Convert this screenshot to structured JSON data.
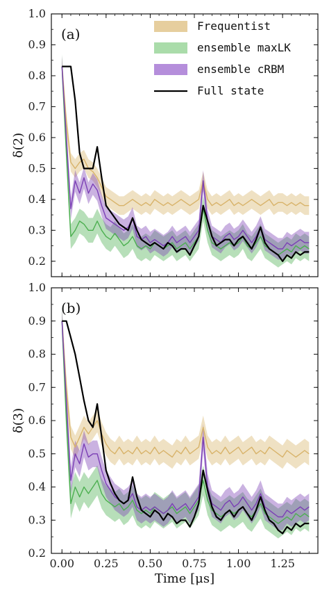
{
  "figure": {
    "xlabel": "Time [μs]"
  },
  "legend": {
    "placement": "top-right of panel (a)",
    "items": [
      {
        "label": "Frequentist",
        "color": "#d8b36a",
        "kind": "band"
      },
      {
        "label": "ensemble maxLK",
        "color": "#7cc97c",
        "kind": "band"
      },
      {
        "label": "ensemble cRBM",
        "color": "#8d52c7",
        "kind": "band"
      },
      {
        "label": "Full state",
        "color": "#000000",
        "kind": "line"
      }
    ]
  },
  "chart_data": [
    {
      "type": "line",
      "panel_label": "(a)",
      "ylabel": "δ(2)",
      "xlabel": "",
      "xlim": [
        -0.06,
        1.45
      ],
      "ylim": [
        0.15,
        1.0
      ],
      "xticks": [
        0.0,
        0.25,
        0.5,
        0.75,
        1.0,
        1.25
      ],
      "yticks": [
        0.2,
        0.3,
        0.4,
        0.5,
        0.6,
        0.7,
        0.8,
        0.9,
        1.0
      ],
      "x": [
        0.0,
        0.025,
        0.05,
        0.075,
        0.1,
        0.125,
        0.15,
        0.175,
        0.2,
        0.225,
        0.25,
        0.275,
        0.3,
        0.325,
        0.35,
        0.375,
        0.4,
        0.425,
        0.45,
        0.475,
        0.5,
        0.525,
        0.55,
        0.575,
        0.6,
        0.625,
        0.65,
        0.675,
        0.7,
        0.725,
        0.75,
        0.775,
        0.8,
        0.825,
        0.85,
        0.875,
        0.9,
        0.925,
        0.95,
        0.975,
        1.0,
        1.025,
        1.05,
        1.075,
        1.1,
        1.125,
        1.15,
        1.175,
        1.2,
        1.225,
        1.25,
        1.275,
        1.3,
        1.325,
        1.35,
        1.375,
        1.4
      ],
      "series": [
        {
          "name": "Frequentist",
          "color": "#d8b36a",
          "mean": [
            0.83,
            0.65,
            0.52,
            0.5,
            0.52,
            0.53,
            0.5,
            0.49,
            0.47,
            0.44,
            0.41,
            0.4,
            0.39,
            0.38,
            0.38,
            0.39,
            0.4,
            0.39,
            0.38,
            0.39,
            0.38,
            0.4,
            0.39,
            0.38,
            0.39,
            0.38,
            0.39,
            0.4,
            0.39,
            0.38,
            0.39,
            0.4,
            0.46,
            0.4,
            0.38,
            0.39,
            0.38,
            0.39,
            0.4,
            0.38,
            0.39,
            0.38,
            0.39,
            0.4,
            0.39,
            0.38,
            0.39,
            0.4,
            0.38,
            0.39,
            0.39,
            0.38,
            0.39,
            0.38,
            0.39,
            0.38,
            0.38
          ],
          "band": 0.03
        },
        {
          "name": "ensemble maxLK",
          "color": "#4caf50",
          "mean": [
            0.83,
            0.55,
            0.28,
            0.3,
            0.33,
            0.32,
            0.3,
            0.3,
            0.33,
            0.3,
            0.28,
            0.27,
            0.29,
            0.27,
            0.25,
            0.26,
            0.28,
            0.25,
            0.24,
            0.25,
            0.24,
            0.26,
            0.25,
            0.24,
            0.25,
            0.26,
            0.24,
            0.25,
            0.26,
            0.24,
            0.26,
            0.28,
            0.37,
            0.3,
            0.26,
            0.25,
            0.24,
            0.25,
            0.26,
            0.25,
            0.26,
            0.28,
            0.25,
            0.24,
            0.26,
            0.28,
            0.25,
            0.24,
            0.23,
            0.22,
            0.23,
            0.24,
            0.23,
            0.25,
            0.24,
            0.25,
            0.24
          ],
          "band": 0.04
        },
        {
          "name": "ensemble cRBM",
          "color": "#7b3fb5",
          "mean": [
            0.83,
            0.6,
            0.37,
            0.46,
            0.42,
            0.47,
            0.42,
            0.45,
            0.43,
            0.38,
            0.34,
            0.33,
            0.32,
            0.31,
            0.3,
            0.31,
            0.34,
            0.28,
            0.27,
            0.28,
            0.26,
            0.27,
            0.26,
            0.25,
            0.26,
            0.28,
            0.26,
            0.27,
            0.28,
            0.26,
            0.28,
            0.3,
            0.46,
            0.33,
            0.28,
            0.27,
            0.26,
            0.28,
            0.29,
            0.27,
            0.28,
            0.3,
            0.28,
            0.26,
            0.28,
            0.31,
            0.27,
            0.26,
            0.25,
            0.24,
            0.24,
            0.26,
            0.25,
            0.26,
            0.27,
            0.26,
            0.26
          ],
          "band": 0.035
        },
        {
          "name": "Full state",
          "color": "#000000",
          "mean": [
            0.83,
            0.83,
            0.83,
            0.72,
            0.55,
            0.5,
            0.5,
            0.5,
            0.57,
            0.47,
            0.38,
            0.36,
            0.34,
            0.32,
            0.31,
            0.3,
            0.34,
            0.3,
            0.27,
            0.26,
            0.25,
            0.26,
            0.25,
            0.24,
            0.26,
            0.25,
            0.23,
            0.24,
            0.24,
            0.22,
            0.25,
            0.28,
            0.38,
            0.33,
            0.28,
            0.25,
            0.26,
            0.27,
            0.27,
            0.25,
            0.27,
            0.28,
            0.26,
            0.24,
            0.27,
            0.31,
            0.26,
            0.24,
            0.23,
            0.22,
            0.2,
            0.22,
            0.21,
            0.23,
            0.22,
            0.23,
            0.23
          ],
          "band": 0
        }
      ]
    },
    {
      "type": "line",
      "panel_label": "(b)",
      "ylabel": "δ(3)",
      "xlabel": "Time [μs]",
      "xlim": [
        -0.06,
        1.45
      ],
      "ylim": [
        0.2,
        1.0
      ],
      "xticks": [
        0.0,
        0.25,
        0.5,
        0.75,
        1.0,
        1.25
      ],
      "yticks": [
        0.2,
        0.3,
        0.4,
        0.5,
        0.6,
        0.7,
        0.8,
        0.9,
        1.0
      ],
      "x": [
        0.0,
        0.025,
        0.05,
        0.075,
        0.1,
        0.125,
        0.15,
        0.175,
        0.2,
        0.225,
        0.25,
        0.275,
        0.3,
        0.325,
        0.35,
        0.375,
        0.4,
        0.425,
        0.45,
        0.475,
        0.5,
        0.525,
        0.55,
        0.575,
        0.6,
        0.625,
        0.65,
        0.675,
        0.7,
        0.725,
        0.75,
        0.775,
        0.8,
        0.825,
        0.85,
        0.875,
        0.9,
        0.925,
        0.95,
        0.975,
        1.0,
        1.025,
        1.05,
        1.075,
        1.1,
        1.125,
        1.15,
        1.175,
        1.2,
        1.225,
        1.25,
        1.275,
        1.3,
        1.325,
        1.35,
        1.375,
        1.4
      ],
      "series": [
        {
          "name": "Frequentist",
          "color": "#d8b36a",
          "mean": [
            0.9,
            0.7,
            0.55,
            0.52,
            0.55,
            0.58,
            0.56,
            0.58,
            0.6,
            0.56,
            0.53,
            0.51,
            0.5,
            0.52,
            0.5,
            0.51,
            0.5,
            0.52,
            0.5,
            0.51,
            0.5,
            0.52,
            0.5,
            0.51,
            0.5,
            0.49,
            0.51,
            0.5,
            0.52,
            0.5,
            0.51,
            0.52,
            0.58,
            0.52,
            0.5,
            0.51,
            0.5,
            0.52,
            0.5,
            0.51,
            0.52,
            0.5,
            0.51,
            0.52,
            0.5,
            0.51,
            0.5,
            0.52,
            0.51,
            0.5,
            0.49,
            0.51,
            0.5,
            0.49,
            0.5,
            0.51,
            0.5
          ],
          "band": 0.035
        },
        {
          "name": "ensemble maxLK",
          "color": "#4caf50",
          "mean": [
            0.9,
            0.6,
            0.35,
            0.4,
            0.37,
            0.4,
            0.38,
            0.4,
            0.42,
            0.38,
            0.36,
            0.35,
            0.34,
            0.35,
            0.33,
            0.34,
            0.36,
            0.33,
            0.32,
            0.33,
            0.32,
            0.34,
            0.33,
            0.32,
            0.33,
            0.34,
            0.32,
            0.33,
            0.34,
            0.32,
            0.34,
            0.36,
            0.42,
            0.36,
            0.33,
            0.32,
            0.31,
            0.32,
            0.33,
            0.32,
            0.33,
            0.34,
            0.32,
            0.31,
            0.33,
            0.35,
            0.32,
            0.31,
            0.3,
            0.29,
            0.3,
            0.31,
            0.3,
            0.32,
            0.31,
            0.32,
            0.31
          ],
          "band": 0.045
        },
        {
          "name": "ensemble cRBM",
          "color": "#7b3fb5",
          "mean": [
            0.9,
            0.66,
            0.42,
            0.5,
            0.47,
            0.53,
            0.49,
            0.5,
            0.5,
            0.45,
            0.41,
            0.39,
            0.37,
            0.36,
            0.35,
            0.36,
            0.38,
            0.34,
            0.33,
            0.34,
            0.33,
            0.34,
            0.33,
            0.32,
            0.33,
            0.35,
            0.33,
            0.34,
            0.35,
            0.33,
            0.35,
            0.37,
            0.55,
            0.4,
            0.35,
            0.34,
            0.33,
            0.35,
            0.36,
            0.34,
            0.35,
            0.37,
            0.35,
            0.33,
            0.35,
            0.38,
            0.34,
            0.33,
            0.32,
            0.31,
            0.31,
            0.33,
            0.32,
            0.33,
            0.34,
            0.33,
            0.34
          ],
          "band": 0.04
        },
        {
          "name": "Full state",
          "color": "#000000",
          "mean": [
            0.9,
            0.9,
            0.85,
            0.8,
            0.73,
            0.66,
            0.6,
            0.58,
            0.65,
            0.55,
            0.45,
            0.41,
            0.38,
            0.36,
            0.35,
            0.36,
            0.43,
            0.37,
            0.33,
            0.32,
            0.31,
            0.33,
            0.32,
            0.3,
            0.32,
            0.31,
            0.29,
            0.3,
            0.3,
            0.28,
            0.31,
            0.35,
            0.45,
            0.39,
            0.34,
            0.31,
            0.3,
            0.32,
            0.33,
            0.31,
            0.33,
            0.34,
            0.32,
            0.3,
            0.33,
            0.37,
            0.33,
            0.3,
            0.29,
            0.27,
            0.26,
            0.28,
            0.27,
            0.29,
            0.28,
            0.29,
            0.29
          ],
          "band": 0
        }
      ]
    }
  ]
}
